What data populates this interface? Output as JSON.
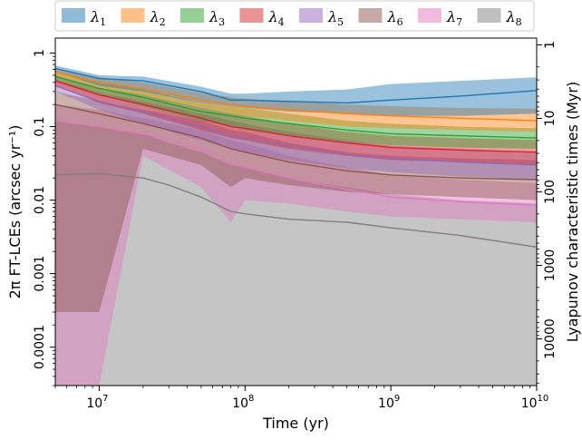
{
  "chart_data": {
    "type": "area",
    "title": "",
    "xlabel": "Time (yr)",
    "ylabel": "2π FT-LCEs (arcsec yr⁻¹)",
    "y2label": "Lyapunov characteristic times (Myr)",
    "xscale": "log",
    "yscale": "log",
    "xlim": [
      5000000,
      10000000000
    ],
    "ylim": [
      3e-05,
      1.6
    ],
    "grid": false,
    "legend_position": "top",
    "x_ticks": [
      {
        "value": 10000000,
        "base": "10",
        "exp": "7"
      },
      {
        "value": 100000000,
        "base": "10",
        "exp": "8"
      },
      {
        "value": 1000000000,
        "base": "10",
        "exp": "9"
      },
      {
        "value": 10000000000,
        "base": "10",
        "exp": "10"
      }
    ],
    "y_ticks": [
      {
        "value": 1,
        "label": "1"
      },
      {
        "value": 0.1,
        "label": "0.1"
      },
      {
        "value": 0.01,
        "label": "0.01"
      },
      {
        "value": 0.001,
        "label": "0.001"
      },
      {
        "value": 0.0001,
        "label": "0.0001"
      }
    ],
    "y2_ticks": [
      {
        "value": 1,
        "label": "1"
      },
      {
        "value": 10,
        "label": "10"
      },
      {
        "value": 100,
        "label": "100"
      },
      {
        "value": 1000,
        "label": "1000"
      },
      {
        "value": 10000,
        "label": "10000"
      }
    ],
    "series": [
      {
        "name": "λ1",
        "sym": "λ",
        "sub": "1",
        "color": "#1f77b4",
        "x": [
          5000000,
          10000000,
          20000000,
          50000000,
          80000000,
          100000000,
          200000000,
          500000000,
          1000000000,
          3000000000,
          10000000000
        ],
        "median": [
          0.62,
          0.45,
          0.42,
          0.3,
          0.23,
          0.23,
          0.22,
          0.21,
          0.23,
          0.26,
          0.31
        ],
        "lower": [
          0.56,
          0.36,
          0.3,
          0.21,
          0.19,
          0.18,
          0.16,
          0.15,
          0.14,
          0.14,
          0.15
        ],
        "upper": [
          0.68,
          0.5,
          0.48,
          0.35,
          0.28,
          0.28,
          0.3,
          0.32,
          0.38,
          0.42,
          0.47
        ]
      },
      {
        "name": "λ2",
        "sym": "λ",
        "sub": "2",
        "color": "#ff7f0e",
        "x": [
          5000000,
          10000000,
          20000000,
          50000000,
          80000000,
          100000000,
          200000000,
          500000000,
          1000000000,
          3000000000,
          10000000000
        ],
        "median": [
          0.55,
          0.4,
          0.33,
          0.23,
          0.2,
          0.19,
          0.17,
          0.15,
          0.14,
          0.13,
          0.12
        ],
        "lower": [
          0.5,
          0.34,
          0.27,
          0.18,
          0.15,
          0.14,
          0.12,
          0.1,
          0.095,
          0.09,
          0.085
        ],
        "upper": [
          0.62,
          0.47,
          0.4,
          0.29,
          0.25,
          0.24,
          0.22,
          0.2,
          0.19,
          0.18,
          0.175
        ]
      },
      {
        "name": "λ3",
        "sym": "λ",
        "sub": "3",
        "color": "#2ca02c",
        "x": [
          5000000,
          10000000,
          20000000,
          50000000,
          80000000,
          100000000,
          200000000,
          500000000,
          1000000000,
          3000000000,
          10000000000
        ],
        "median": [
          0.48,
          0.33,
          0.25,
          0.16,
          0.14,
          0.13,
          0.11,
          0.09,
          0.08,
          0.075,
          0.07
        ],
        "lower": [
          0.42,
          0.27,
          0.19,
          0.12,
          0.1,
          0.09,
          0.075,
          0.062,
          0.056,
          0.052,
          0.05
        ],
        "upper": [
          0.55,
          0.4,
          0.32,
          0.21,
          0.19,
          0.18,
          0.15,
          0.12,
          0.11,
          0.1,
          0.095
        ]
      },
      {
        "name": "λ4",
        "sym": "λ",
        "sub": "4",
        "color": "#d62728",
        "x": [
          5000000,
          10000000,
          20000000,
          50000000,
          80000000,
          100000000,
          200000000,
          500000000,
          1000000000,
          3000000000,
          10000000000
        ],
        "median": [
          0.42,
          0.27,
          0.2,
          0.13,
          0.1,
          0.095,
          0.075,
          0.06,
          0.052,
          0.048,
          0.045
        ],
        "lower": [
          0.36,
          0.21,
          0.15,
          0.09,
          0.07,
          0.065,
          0.05,
          0.04,
          0.035,
          0.033,
          0.03
        ],
        "upper": [
          0.5,
          0.34,
          0.27,
          0.18,
          0.15,
          0.14,
          0.11,
          0.085,
          0.075,
          0.07,
          0.066
        ]
      },
      {
        "name": "λ5",
        "sym": "λ",
        "sub": "5",
        "color": "#9467bd",
        "x": [
          5000000,
          10000000,
          20000000,
          50000000,
          80000000,
          100000000,
          200000000,
          500000000,
          1000000000,
          3000000000,
          10000000000
        ],
        "median": [
          0.36,
          0.22,
          0.16,
          0.1,
          0.075,
          0.07,
          0.055,
          0.042,
          0.037,
          0.033,
          0.03
        ],
        "lower": [
          0.3,
          0.17,
          0.11,
          0.065,
          0.05,
          0.045,
          0.035,
          0.027,
          0.024,
          0.021,
          0.019
        ],
        "upper": [
          0.44,
          0.29,
          0.22,
          0.15,
          0.12,
          0.11,
          0.085,
          0.065,
          0.055,
          0.05,
          0.045
        ]
      },
      {
        "name": "λ6",
        "sym": "λ",
        "sub": "6",
        "color": "#8c564b",
        "x": [
          5000000,
          10000000,
          20000000,
          50000000,
          80000000,
          100000000,
          200000000,
          500000000,
          1000000000,
          3000000000,
          10000000000
        ],
        "median": [
          0.2,
          0.15,
          0.11,
          0.07,
          0.05,
          0.045,
          0.033,
          0.025,
          0.022,
          0.02,
          0.019
        ],
        "lower": [
          0.0003,
          0.0003,
          0.05,
          0.03,
          0.015,
          0.02,
          0.016,
          0.013,
          0.012,
          0.011,
          0.01
        ],
        "upper": [
          0.3,
          0.22,
          0.17,
          0.12,
          0.09,
          0.085,
          0.06,
          0.045,
          0.04,
          0.037,
          0.035
        ]
      },
      {
        "name": "λ7",
        "sym": "λ",
        "sub": "7",
        "color": "#e377c2",
        "x": [
          5000000,
          10000000,
          20000000,
          50000000,
          80000000,
          100000000,
          200000000,
          500000000,
          1000000000,
          3000000000,
          10000000000
        ],
        "median": [
          0.12,
          0.1,
          0.08,
          0.05,
          0.032,
          0.028,
          0.02,
          0.014,
          0.011,
          0.0095,
          0.0085
        ],
        "lower": [
          3e-05,
          3e-05,
          0.04,
          0.015,
          0.005,
          0.01,
          0.009,
          0.007,
          0.006,
          0.0055,
          0.005
        ],
        "upper": [
          0.2,
          0.17,
          0.13,
          0.09,
          0.065,
          0.06,
          0.04,
          0.028,
          0.022,
          0.019,
          0.017
        ]
      },
      {
        "name": "λ8",
        "sym": "λ",
        "sub": "8",
        "color": "#7f7f7f",
        "x": [
          5000000,
          10000000,
          20000000,
          30000000,
          50000000,
          80000000,
          100000000,
          200000000,
          500000000,
          1000000000,
          3000000000,
          10000000000
        ],
        "median": [
          0.022,
          0.023,
          0.02,
          0.016,
          0.011,
          0.007,
          0.0065,
          0.0055,
          0.005,
          0.0042,
          0.0033,
          0.0023
        ],
        "lower": [
          3e-05,
          3e-05,
          3e-05,
          3e-05,
          3e-05,
          3e-05,
          3e-05,
          3e-05,
          3e-05,
          3e-05,
          3e-05,
          3e-05
        ],
        "upper": [
          0.12,
          0.1,
          0.08,
          0.06,
          0.045,
          0.03,
          0.028,
          0.02,
          0.015,
          0.012,
          0.01,
          0.009
        ]
      }
    ]
  }
}
